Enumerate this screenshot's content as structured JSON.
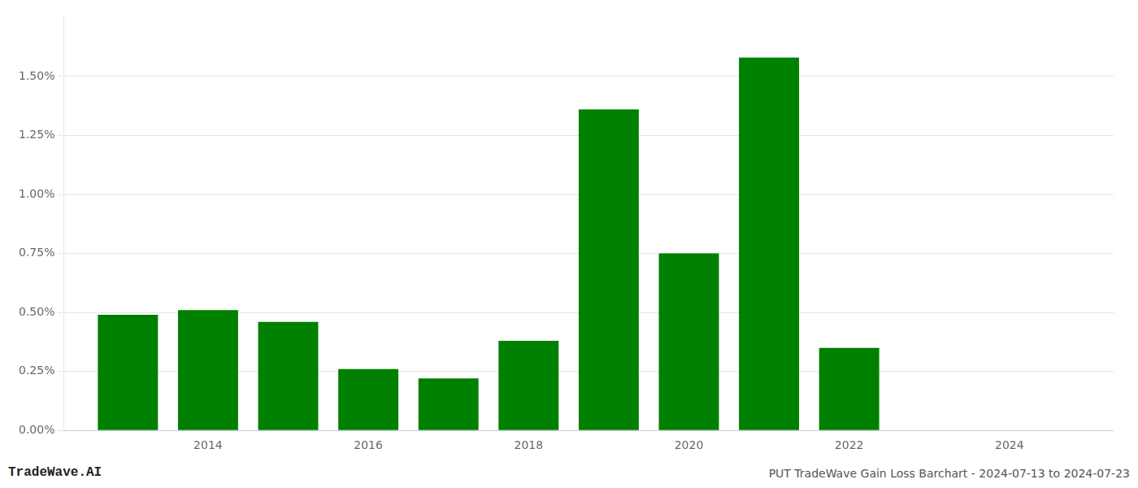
{
  "chart_data": {
    "type": "bar",
    "title": "PUT TradeWave Gain Loss Barchart - 2024-07-13 to 2024-07-23",
    "annotations": [
      "TradeWave.AI"
    ],
    "x": [
      2013,
      2014,
      2015,
      2016,
      2017,
      2018,
      2019,
      2020,
      2021,
      2022,
      2023
    ],
    "values": [
      0.0049,
      0.0051,
      0.0046,
      0.0026,
      0.0022,
      0.0038,
      0.0136,
      0.0075,
      0.0158,
      0.0035,
      0.0
    ],
    "color": "#008000",
    "xlim": [
      2012.2,
      2025.3
    ],
    "xticks": [
      2014,
      2016,
      2018,
      2020,
      2022,
      2024
    ],
    "ylim": [
      0,
      0.0175
    ],
    "yticks": [
      {
        "value": 0.0,
        "label": "0.00%"
      },
      {
        "value": 0.0025,
        "label": "0.25%"
      },
      {
        "value": 0.005,
        "label": "0.50%"
      },
      {
        "value": 0.0075,
        "label": "0.75%"
      },
      {
        "value": 0.01,
        "label": "1.00%"
      },
      {
        "value": 0.0125,
        "label": "1.25%"
      },
      {
        "value": 0.015,
        "label": "1.50%"
      }
    ],
    "grid": "y"
  }
}
